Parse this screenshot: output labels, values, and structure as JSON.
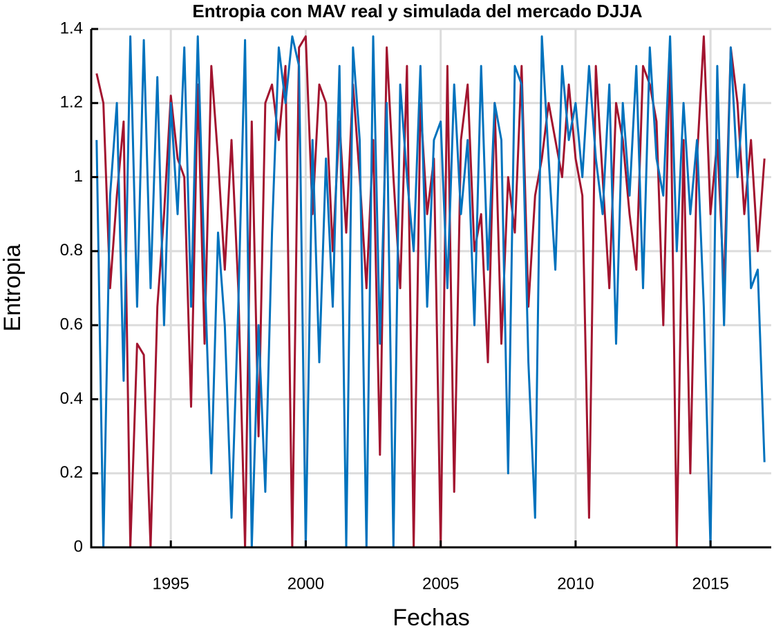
{
  "chart_data": {
    "type": "line",
    "title": "Entropia con MAV real y simulada del mercado DJJA",
    "xlabel": "Fechas",
    "ylabel": "Entropia",
    "x": [
      1992.25,
      1992.5,
      1992.75,
      1993.0,
      1993.25,
      1993.5,
      1993.75,
      1994.0,
      1994.25,
      1994.5,
      1994.75,
      1995.0,
      1995.25,
      1995.5,
      1995.75,
      1996.0,
      1996.25,
      1996.5,
      1996.75,
      1997.0,
      1997.25,
      1997.5,
      1997.75,
      1998.0,
      1998.25,
      1998.5,
      1998.75,
      1999.0,
      1999.25,
      1999.5,
      1999.75,
      2000.0,
      2000.25,
      2000.5,
      2000.75,
      2001.0,
      2001.25,
      2001.5,
      2001.75,
      2002.0,
      2002.25,
      2002.5,
      2002.75,
      2003.0,
      2003.25,
      2003.5,
      2003.75,
      2004.0,
      2004.25,
      2004.5,
      2004.75,
      2005.0,
      2005.25,
      2005.5,
      2005.75,
      2006.0,
      2006.25,
      2006.5,
      2006.75,
      2007.0,
      2007.25,
      2007.5,
      2007.75,
      2008.0,
      2008.25,
      2008.5,
      2008.75,
      2009.0,
      2009.25,
      2009.5,
      2009.75,
      2010.0,
      2010.25,
      2010.5,
      2010.75,
      2011.0,
      2011.25,
      2011.5,
      2011.75,
      2012.0,
      2012.25,
      2012.5,
      2012.75,
      2013.0,
      2013.25,
      2013.5,
      2013.75,
      2014.0,
      2014.25,
      2014.5,
      2014.75,
      2015.0,
      2015.25,
      2015.5,
      2015.75,
      2016.0,
      2016.25,
      2016.5,
      2016.75,
      2017.0
    ],
    "series": [
      {
        "color": "#a2142f",
        "values": [
          1.28,
          1.2,
          0.7,
          0.95,
          1.15,
          0,
          0.55,
          0.52,
          0,
          0.65,
          0.9,
          1.22,
          1.05,
          1.0,
          0.38,
          1.25,
          0.55,
          1.3,
          1.05,
          0.75,
          1.1,
          0.7,
          0,
          1.15,
          0.3,
          1.2,
          1.25,
          1.1,
          1.3,
          0,
          1.35,
          1.38,
          0.9,
          1.25,
          1.2,
          0.8,
          1.15,
          0.85,
          1.25,
          1.0,
          0.7,
          1.1,
          0.25,
          1.35,
          1.0,
          0.7,
          1.3,
          0,
          1.2,
          0.9,
          1.05,
          0,
          1.3,
          0.15,
          1.1,
          1.25,
          0.8,
          0.9,
          0.5,
          1.2,
          0.55,
          1.0,
          0.85,
          1.3,
          0.65,
          0.95,
          1.05,
          1.2,
          1.1,
          1.0,
          1.25,
          1.05,
          0.95,
          0.08,
          1.3,
          1.0,
          0.7,
          1.2,
          1.1,
          0.9,
          0.75,
          1.3,
          1.25,
          1.15,
          0.6,
          1.35,
          0,
          1.1,
          0.2,
          1.05,
          1.38,
          0.9,
          1.1,
          0.7,
          1.35,
          1.2,
          0.9,
          1.1,
          0.8,
          1.05
        ]
      },
      {
        "color": "#0072bd",
        "values": [
          1.1,
          0,
          0.95,
          1.2,
          0.45,
          1.38,
          0.65,
          1.37,
          0.7,
          1.27,
          0.6,
          1.2,
          0.9,
          1.35,
          0.65,
          1.38,
          0.75,
          0.2,
          0.85,
          0.6,
          0.08,
          0.65,
          1.37,
          0,
          0.6,
          0.15,
          0.85,
          1.35,
          1.2,
          1.38,
          1.3,
          0,
          1.1,
          0.5,
          1.05,
          0.65,
          1.3,
          0,
          1.35,
          1.1,
          0,
          1.38,
          0.55,
          1.2,
          0,
          1.25,
          1.0,
          0.8,
          1.3,
          0.65,
          1.1,
          1.15,
          0.7,
          1.25,
          0.9,
          1.1,
          0.6,
          1.3,
          0.75,
          1.2,
          1.1,
          0.2,
          1.3,
          1.25,
          0.5,
          0.08,
          1.38,
          1.05,
          0.75,
          1.3,
          1.1,
          1.2,
          1.0,
          1.3,
          1.05,
          0.9,
          1.25,
          0.55,
          1.2,
          0.95,
          1.3,
          0.7,
          1.35,
          1.05,
          0.95,
          1.38,
          0.8,
          1.2,
          0.9,
          1.1,
          0.65,
          0,
          1.3,
          0.6,
          1.35,
          1.0,
          1.25,
          0.7,
          0.75,
          0.23
        ]
      }
    ],
    "xlim": [
      1992.05,
      2017.25
    ],
    "ylim": [
      0,
      1.4
    ],
    "xticks": [
      1995,
      2000,
      2005,
      2010,
      2015
    ],
    "yticks": [
      0,
      0.2,
      0.4,
      0.6,
      0.8,
      1,
      1.2,
      1.4
    ],
    "grid": true
  }
}
